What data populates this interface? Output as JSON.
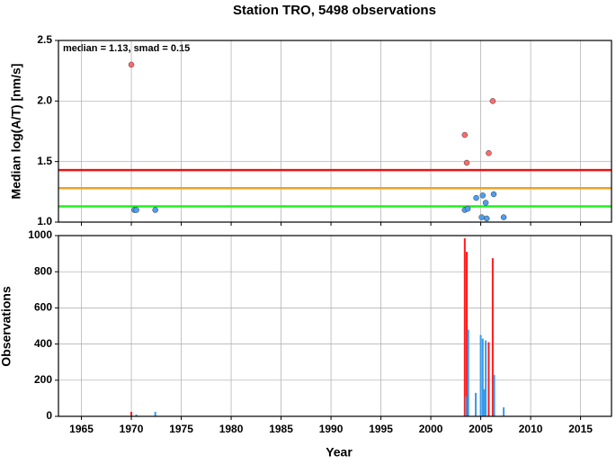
{
  "chart_data": [
    {
      "type": "scatter",
      "title": "Station TRO, 5498 observations",
      "ylabel": "Median log(A/T) [nm/s]",
      "annotation": "median = 1.13, smad = 0.15",
      "xlim": [
        1962.7,
        2018.1
      ],
      "xticks": [
        1965,
        1970,
        1975,
        1980,
        1985,
        1990,
        1995,
        2000,
        2005,
        2010,
        2015
      ],
      "ylim": [
        1,
        2.5
      ],
      "yticks": [
        {
          "value": 1,
          "label": "1.0"
        },
        1.5,
        {
          "value": 2,
          "label": "2.0"
        },
        {
          "value": 2.5,
          "label": "2.5"
        }
      ],
      "grid": true,
      "hlines": [
        {
          "value": 1.43,
          "color": "#ee1111"
        },
        {
          "value": 1.28,
          "color": "#f0a020"
        },
        {
          "value": 1.13,
          "color": "#22ee22"
        }
      ],
      "series": [
        {
          "color": "#ff6b6b",
          "x": [
            1970.0,
            2003.4,
            2003.6,
            2005.8,
            2006.2
          ],
          "values": [
            2.3,
            1.72,
            1.49,
            1.57,
            2.0
          ]
        },
        {
          "color": "#4d9ff0",
          "x": [
            1970.3,
            1970.5,
            1972.4,
            2003.4,
            2003.7,
            2004.55,
            2005.1,
            2005.2,
            2005.5,
            2005.6,
            2006.3,
            2007.3
          ],
          "values": [
            1.1,
            1.1,
            1.1,
            1.1,
            1.11,
            1.2,
            1.04,
            1.22,
            1.16,
            1.03,
            1.23,
            1.04
          ]
        }
      ]
    },
    {
      "type": "bar",
      "xlabel": "Year",
      "ylabel": "Observations",
      "xlim": [
        1962.7,
        2018.1
      ],
      "xticks": [
        1965,
        1970,
        1975,
        1980,
        1985,
        1990,
        1995,
        2000,
        2005,
        2010,
        2015
      ],
      "ylim": [
        0,
        1000
      ],
      "yticks": [
        0,
        200,
        400,
        600,
        800,
        1000
      ],
      "grid": true,
      "series": [
        {
          "color": "#ff1a1a",
          "x": [
            1970.0,
            2003.4,
            2003.6,
            2005.8,
            2006.2
          ],
          "values": [
            25,
            985,
            910,
            410,
            875
          ]
        },
        {
          "color": "#3a9ae8",
          "x": [
            1970.5,
            1972.4,
            2003.5,
            2003.75,
            2004.5,
            2005.0,
            2005.2,
            2005.35,
            2005.5,
            2006.35,
            2007.3
          ],
          "values": [
            10,
            25,
            110,
            480,
            130,
            450,
            430,
            150,
            420,
            230,
            50
          ]
        }
      ]
    }
  ]
}
